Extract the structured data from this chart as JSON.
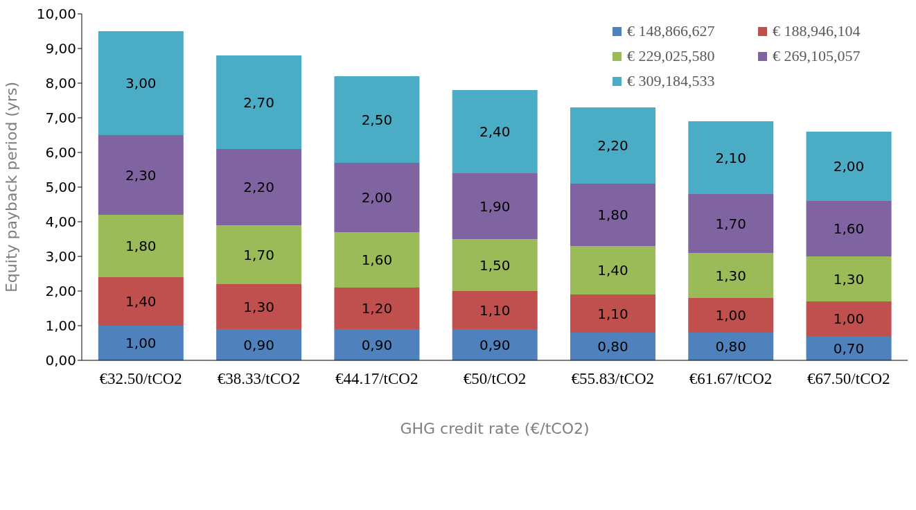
{
  "chart_data": {
    "type": "bar",
    "stacked": true,
    "xlabel": "GHG credit rate (€/tCO2)",
    "ylabel": "Equity payback period (yrs)",
    "categories": [
      "€32.50/tCO2",
      "€38.33/tCO2",
      "€44.17/tCO2",
      "€50/tCO2",
      "€55.83/tCO2",
      "€61.67/tCO2",
      "€67.50/tCO2"
    ],
    "ylim": [
      0,
      10
    ],
    "yticks": [
      {
        "value": 0,
        "label": "0,00"
      },
      {
        "value": 1,
        "label": "1,00"
      },
      {
        "value": 2,
        "label": "2,00"
      },
      {
        "value": 3,
        "label": "3,00"
      },
      {
        "value": 4,
        "label": "4,00"
      },
      {
        "value": 5,
        "label": "5,00"
      },
      {
        "value": 6,
        "label": "6,00"
      },
      {
        "value": 7,
        "label": "7,00"
      },
      {
        "value": 8,
        "label": "8,00"
      },
      {
        "value": 9,
        "label": "9,00"
      },
      {
        "value": 10,
        "label": "10,00"
      }
    ],
    "grid": false,
    "legend": "top right",
    "series": [
      {
        "name": "€ 148,866,627",
        "color": "#4f81bd",
        "values": [
          1.0,
          0.9,
          0.9,
          0.9,
          0.8,
          0.8,
          0.7
        ],
        "value_labels": [
          "1,00",
          "0,90",
          "0,90",
          "0,90",
          "0,80",
          "0,80",
          "0,70"
        ]
      },
      {
        "name": "€ 188,946,104",
        "color": "#c0504d",
        "values": [
          1.4,
          1.3,
          1.2,
          1.1,
          1.1,
          1.0,
          1.0
        ],
        "value_labels": [
          "1,40",
          "1,30",
          "1,20",
          "1,10",
          "1,10",
          "1,00",
          "1,00"
        ]
      },
      {
        "name": "€ 229,025,580",
        "color": "#9bbb59",
        "values": [
          1.8,
          1.7,
          1.6,
          1.5,
          1.4,
          1.3,
          1.3
        ],
        "value_labels": [
          "1,80",
          "1,70",
          "1,60",
          "1,50",
          "1,40",
          "1,30",
          "1,30"
        ]
      },
      {
        "name": "€ 269,105,057",
        "color": "#8064a2",
        "values": [
          2.3,
          2.2,
          2.0,
          1.9,
          1.8,
          1.7,
          1.6
        ],
        "value_labels": [
          "2,30",
          "2,20",
          "2,00",
          "1,90",
          "1,80",
          "1,70",
          "1,60"
        ]
      },
      {
        "name": "€ 309,184,533",
        "color": "#4bacc6",
        "values": [
          3.0,
          2.7,
          2.5,
          2.4,
          2.2,
          2.1,
          2.0
        ],
        "value_labels": [
          "3,00",
          "2,70",
          "2,50",
          "2,40",
          "2,20",
          "2,10",
          "2,00"
        ]
      }
    ]
  }
}
